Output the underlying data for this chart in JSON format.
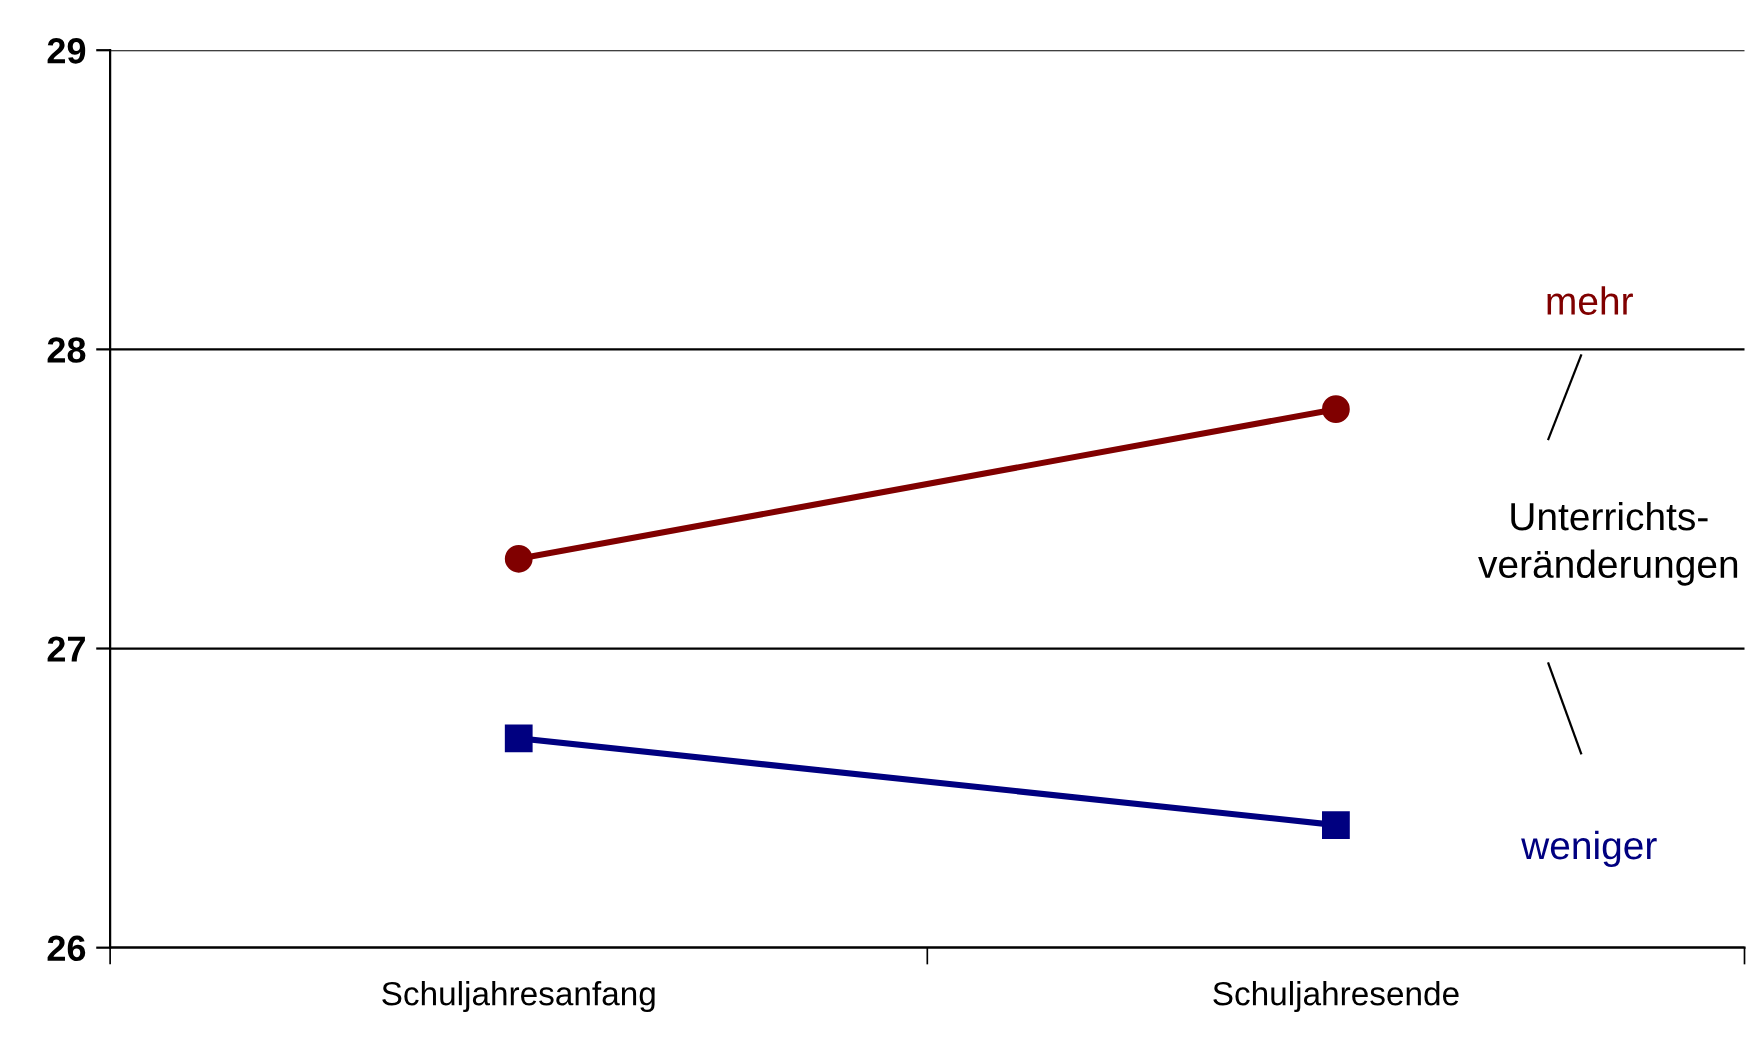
{
  "chart_data": {
    "type": "line",
    "categories": [
      "Schuljahresanfang",
      "Schuljahresende"
    ],
    "series": [
      {
        "name": "mehr",
        "color": "#800000",
        "marker": "circle",
        "values": [
          27.3,
          27.8
        ]
      },
      {
        "name": "weniger",
        "color": "#000080",
        "marker": "square",
        "values": [
          26.7,
          26.41
        ]
      }
    ],
    "ylim": [
      26,
      29
    ],
    "yticks": [
      26,
      27,
      28,
      29
    ],
    "grid": "y",
    "legend": false,
    "line_style": "solid",
    "annotations": [
      "Unterrichts-\nveränderungen"
    ]
  }
}
